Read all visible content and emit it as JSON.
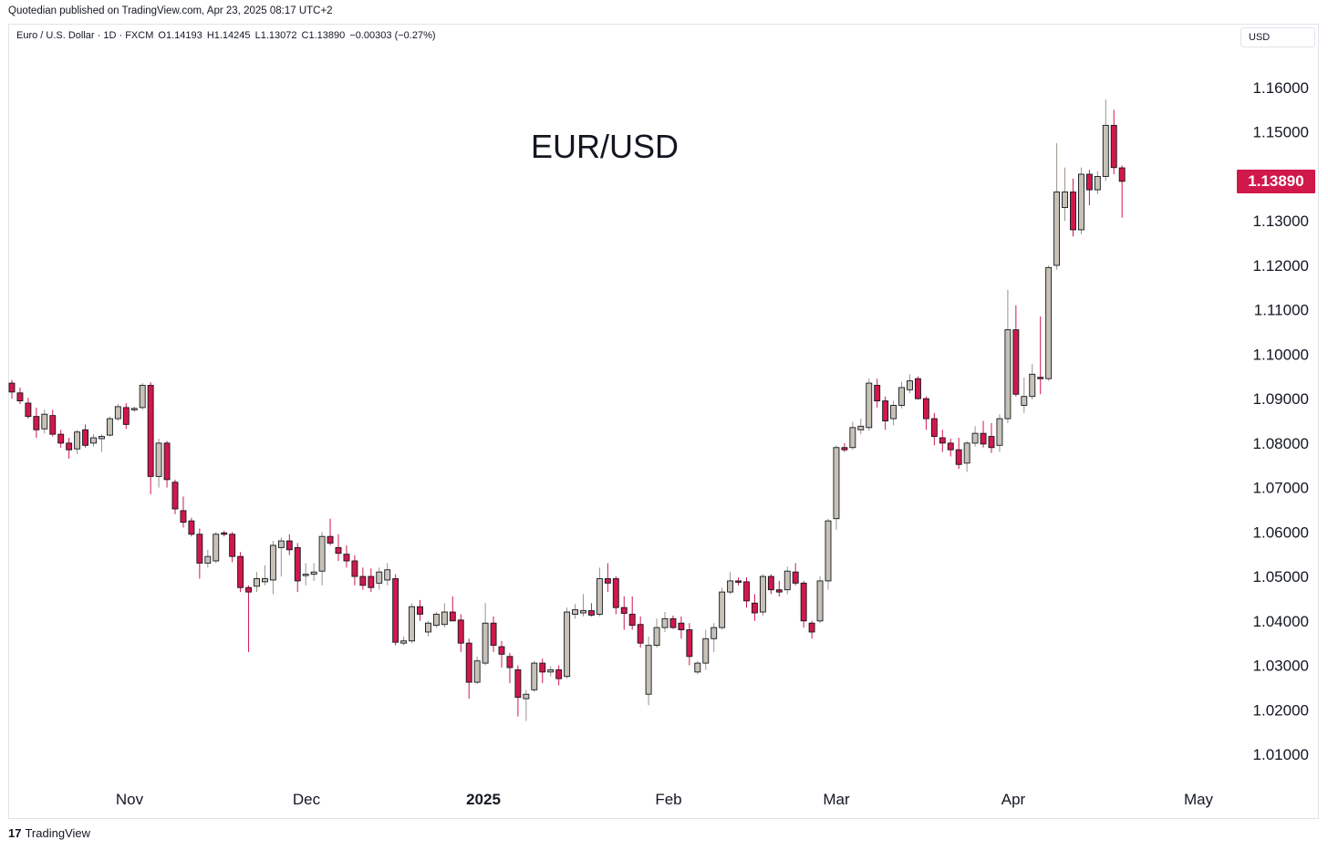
{
  "header": {
    "published": "Quotedian published on TradingView.com, Apr 23, 2025 08:17 UTC+2"
  },
  "legend": {
    "symbol": "Euro / U.S. Dollar · 1D · FXCM",
    "open": "O1.14193",
    "high": "H1.14245",
    "low": "L1.13072",
    "close": "C1.13890",
    "change": "−0.00303 (−0.27%)"
  },
  "currency_selector": "USD",
  "footer": {
    "brand": "TradingView",
    "logo_glyph": "17"
  },
  "colors": {
    "up": "#c8c2b6",
    "up_border": "#131722",
    "down": "#d1184b",
    "down_border": "#131722",
    "price_badge": "#d1184b"
  },
  "chart_data": {
    "type": "candlestick",
    "title": "EUR/USD",
    "current_price": "1.13890",
    "y_ticks": [
      "1.16000",
      "1.15000",
      "1.13000",
      "1.12000",
      "1.11000",
      "1.10000",
      "1.09000",
      "1.08000",
      "1.07000",
      "1.06000",
      "1.05000",
      "1.04000",
      "1.03000",
      "1.02000",
      "1.01000"
    ],
    "x_ticks": [
      "Nov",
      "Dec",
      "2025",
      "Feb",
      "Mar",
      "Apr",
      "May"
    ],
    "ylim": [
      1.003,
      1.17
    ],
    "candles": [
      {
        "o": 1.0935,
        "h": 1.0942,
        "l": 1.09,
        "c": 1.0915
      },
      {
        "o": 1.0913,
        "h": 1.0925,
        "l": 1.0888,
        "c": 1.0895
      },
      {
        "o": 1.089,
        "h": 1.0902,
        "l": 1.0855,
        "c": 1.086
      },
      {
        "o": 1.086,
        "h": 1.088,
        "l": 1.0812,
        "c": 1.083
      },
      {
        "o": 1.0832,
        "h": 1.0875,
        "l": 1.0822,
        "c": 1.0865
      },
      {
        "o": 1.0862,
        "h": 1.0875,
        "l": 1.0815,
        "c": 1.082
      },
      {
        "o": 1.082,
        "h": 1.083,
        "l": 1.079,
        "c": 1.08
      },
      {
        "o": 1.08,
        "h": 1.0812,
        "l": 1.0765,
        "c": 1.0785
      },
      {
        "o": 1.0787,
        "h": 1.083,
        "l": 1.0775,
        "c": 1.0825
      },
      {
        "o": 1.083,
        "h": 1.0842,
        "l": 1.079,
        "c": 1.0795
      },
      {
        "o": 1.08,
        "h": 1.082,
        "l": 1.0792,
        "c": 1.0812
      },
      {
        "o": 1.081,
        "h": 1.082,
        "l": 1.078,
        "c": 1.0815
      },
      {
        "o": 1.0818,
        "h": 1.086,
        "l": 1.0815,
        "c": 1.0855
      },
      {
        "o": 1.0855,
        "h": 1.0888,
        "l": 1.085,
        "c": 1.0882
      },
      {
        "o": 1.088,
        "h": 1.089,
        "l": 1.0832,
        "c": 1.0842
      },
      {
        "o": 1.0875,
        "h": 1.0882,
        "l": 1.087,
        "c": 1.0878
      },
      {
        "o": 1.088,
        "h": 1.0935,
        "l": 1.0875,
        "c": 1.093
      },
      {
        "o": 1.093,
        "h": 1.0937,
        "l": 1.0685,
        "c": 1.0725
      },
      {
        "o": 1.0725,
        "h": 1.081,
        "l": 1.07,
        "c": 1.08
      },
      {
        "o": 1.08,
        "h": 1.0805,
        "l": 1.07,
        "c": 1.0718
      },
      {
        "o": 1.0712,
        "h": 1.0718,
        "l": 1.064,
        "c": 1.0652
      },
      {
        "o": 1.0648,
        "h": 1.068,
        "l": 1.061,
        "c": 1.0622
      },
      {
        "o": 1.0625,
        "h": 1.0632,
        "l": 1.059,
        "c": 1.0595
      },
      {
        "o": 1.0595,
        "h": 1.0608,
        "l": 1.0495,
        "c": 1.053
      },
      {
        "o": 1.053,
        "h": 1.056,
        "l": 1.052,
        "c": 1.0545
      },
      {
        "o": 1.0535,
        "h": 1.06,
        "l": 1.053,
        "c": 1.0595
      },
      {
        "o": 1.0598,
        "h": 1.0603,
        "l": 1.059,
        "c": 1.0595
      },
      {
        "o": 1.0595,
        "h": 1.06,
        "l": 1.0532,
        "c": 1.0545
      },
      {
        "o": 1.0545,
        "h": 1.0555,
        "l": 1.0465,
        "c": 1.0475
      },
      {
        "o": 1.0475,
        "h": 1.048,
        "l": 1.033,
        "c": 1.0465
      },
      {
        "o": 1.0478,
        "h": 1.051,
        "l": 1.0465,
        "c": 1.0495
      },
      {
        "o": 1.0488,
        "h": 1.0525,
        "l": 1.048,
        "c": 1.0495
      },
      {
        "o": 1.0492,
        "h": 1.058,
        "l": 1.046,
        "c": 1.057
      },
      {
        "o": 1.0565,
        "h": 1.0588,
        "l": 1.05,
        "c": 1.058
      },
      {
        "o": 1.058,
        "h": 1.0595,
        "l": 1.0548,
        "c": 1.056
      },
      {
        "o": 1.0565,
        "h": 1.0575,
        "l": 1.0465,
        "c": 1.049
      },
      {
        "o": 1.0505,
        "h": 1.053,
        "l": 1.048,
        "c": 1.0505
      },
      {
        "o": 1.0505,
        "h": 1.053,
        "l": 1.049,
        "c": 1.051
      },
      {
        "o": 1.0512,
        "h": 1.06,
        "l": 1.048,
        "c": 1.059
      },
      {
        "o": 1.059,
        "h": 1.063,
        "l": 1.057,
        "c": 1.0575
      },
      {
        "o": 1.0565,
        "h": 1.0595,
        "l": 1.0535,
        "c": 1.0552
      },
      {
        "o": 1.055,
        "h": 1.057,
        "l": 1.052,
        "c": 1.0535
      },
      {
        "o": 1.0535,
        "h": 1.0548,
        "l": 1.048,
        "c": 1.05
      },
      {
        "o": 1.05,
        "h": 1.052,
        "l": 1.047,
        "c": 1.048
      },
      {
        "o": 1.05,
        "h": 1.0518,
        "l": 1.0465,
        "c": 1.0475
      },
      {
        "o": 1.0485,
        "h": 1.052,
        "l": 1.047,
        "c": 1.051
      },
      {
        "o": 1.0492,
        "h": 1.053,
        "l": 1.048,
        "c": 1.0515
      },
      {
        "o": 1.0495,
        "h": 1.0505,
        "l": 1.0345,
        "c": 1.0352
      },
      {
        "o": 1.035,
        "h": 1.0365,
        "l": 1.0345,
        "c": 1.0355
      },
      {
        "o": 1.0355,
        "h": 1.044,
        "l": 1.035,
        "c": 1.0432
      },
      {
        "o": 1.0432,
        "h": 1.0447,
        "l": 1.04,
        "c": 1.0415
      },
      {
        "o": 1.0375,
        "h": 1.04,
        "l": 1.0365,
        "c": 1.0395
      },
      {
        "o": 1.039,
        "h": 1.042,
        "l": 1.0385,
        "c": 1.0415
      },
      {
        "o": 1.0392,
        "h": 1.044,
        "l": 1.0385,
        "c": 1.042
      },
      {
        "o": 1.042,
        "h": 1.0455,
        "l": 1.04,
        "c": 1.04
      },
      {
        "o": 1.0402,
        "h": 1.0415,
        "l": 1.033,
        "c": 1.035
      },
      {
        "o": 1.035,
        "h": 1.036,
        "l": 1.0225,
        "c": 1.0262
      },
      {
        "o": 1.0262,
        "h": 1.032,
        "l": 1.0258,
        "c": 1.031
      },
      {
        "o": 1.0305,
        "h": 1.044,
        "l": 1.03,
        "c": 1.0395
      },
      {
        "o": 1.0395,
        "h": 1.041,
        "l": 1.033,
        "c": 1.0345
      },
      {
        "o": 1.0342,
        "h": 1.0355,
        "l": 1.0295,
        "c": 1.0325
      },
      {
        "o": 1.032,
        "h": 1.0328,
        "l": 1.026,
        "c": 1.0295
      },
      {
        "o": 1.029,
        "h": 1.03,
        "l": 1.0185,
        "c": 1.0228
      },
      {
        "o": 1.0225,
        "h": 1.0245,
        "l": 1.0175,
        "c": 1.0235
      },
      {
        "o": 1.0245,
        "h": 1.031,
        "l": 1.024,
        "c": 1.0305
      },
      {
        "o": 1.0305,
        "h": 1.0315,
        "l": 1.026,
        "c": 1.0285
      },
      {
        "o": 1.0285,
        "h": 1.0298,
        "l": 1.0275,
        "c": 1.029
      },
      {
        "o": 1.029,
        "h": 1.03,
        "l": 1.0255,
        "c": 1.027
      },
      {
        "o": 1.0275,
        "h": 1.043,
        "l": 1.027,
        "c": 1.042
      },
      {
        "o": 1.0415,
        "h": 1.0438,
        "l": 1.0405,
        "c": 1.0425
      },
      {
        "o": 1.0418,
        "h": 1.046,
        "l": 1.041,
        "c": 1.0423
      },
      {
        "o": 1.0423,
        "h": 1.044,
        "l": 1.041,
        "c": 1.0413
      },
      {
        "o": 1.0415,
        "h": 1.052,
        "l": 1.041,
        "c": 1.0495
      },
      {
        "o": 1.0495,
        "h": 1.053,
        "l": 1.0465,
        "c": 1.0485
      },
      {
        "o": 1.0495,
        "h": 1.05,
        "l": 1.0415,
        "c": 1.043
      },
      {
        "o": 1.043,
        "h": 1.0455,
        "l": 1.038,
        "c": 1.0417
      },
      {
        "o": 1.0415,
        "h": 1.0455,
        "l": 1.038,
        "c": 1.039
      },
      {
        "o": 1.0392,
        "h": 1.041,
        "l": 1.034,
        "c": 1.035
      },
      {
        "o": 1.0235,
        "h": 1.0365,
        "l": 1.021,
        "c": 1.0345
      },
      {
        "o": 1.0345,
        "h": 1.0405,
        "l": 1.034,
        "c": 1.0385
      },
      {
        "o": 1.0385,
        "h": 1.042,
        "l": 1.0375,
        "c": 1.0405
      },
      {
        "o": 1.0405,
        "h": 1.0412,
        "l": 1.0382,
        "c": 1.0385
      },
      {
        "o": 1.0395,
        "h": 1.041,
        "l": 1.036,
        "c": 1.038
      },
      {
        "o": 1.038,
        "h": 1.0395,
        "l": 1.03,
        "c": 1.032
      },
      {
        "o": 1.0285,
        "h": 1.031,
        "l": 1.028,
        "c": 1.0305
      },
      {
        "o": 1.0305,
        "h": 1.038,
        "l": 1.029,
        "c": 1.036
      },
      {
        "o": 1.036,
        "h": 1.0395,
        "l": 1.033,
        "c": 1.0385
      },
      {
        "o": 1.0385,
        "h": 1.0475,
        "l": 1.038,
        "c": 1.0465
      },
      {
        "o": 1.0465,
        "h": 1.051,
        "l": 1.046,
        "c": 1.049
      },
      {
        "o": 1.049,
        "h": 1.0498,
        "l": 1.048,
        "c": 1.0488
      },
      {
        "o": 1.0488,
        "h": 1.0498,
        "l": 1.043,
        "c": 1.0445
      },
      {
        "o": 1.044,
        "h": 1.046,
        "l": 1.04,
        "c": 1.0418
      },
      {
        "o": 1.042,
        "h": 1.0505,
        "l": 1.0412,
        "c": 1.05
      },
      {
        "o": 1.05,
        "h": 1.0505,
        "l": 1.046,
        "c": 1.047
      },
      {
        "o": 1.047,
        "h": 1.049,
        "l": 1.0455,
        "c": 1.0465
      },
      {
        "o": 1.047,
        "h": 1.0522,
        "l": 1.046,
        "c": 1.0512
      },
      {
        "o": 1.051,
        "h": 1.053,
        "l": 1.048,
        "c": 1.0485
      },
      {
        "o": 1.0485,
        "h": 1.049,
        "l": 1.0385,
        "c": 1.04
      },
      {
        "o": 1.0395,
        "h": 1.04,
        "l": 1.036,
        "c": 1.0375
      },
      {
        "o": 1.04,
        "h": 1.05,
        "l": 1.0395,
        "c": 1.049
      },
      {
        "o": 1.049,
        "h": 1.063,
        "l": 1.047,
        "c": 1.0625
      },
      {
        "o": 1.063,
        "h": 1.0795,
        "l": 1.0605,
        "c": 1.079
      },
      {
        "o": 1.079,
        "h": 1.08,
        "l": 1.078,
        "c": 1.0785
      },
      {
        "o": 1.079,
        "h": 1.0848,
        "l": 1.0785,
        "c": 1.0835
      },
      {
        "o": 1.083,
        "h": 1.0855,
        "l": 1.082,
        "c": 1.0838
      },
      {
        "o": 1.0835,
        "h": 1.0945,
        "l": 1.0828,
        "c": 1.0935
      },
      {
        "o": 1.093,
        "h": 1.0945,
        "l": 1.088,
        "c": 1.0895
      },
      {
        "o": 1.0895,
        "h": 1.0905,
        "l": 1.083,
        "c": 1.085
      },
      {
        "o": 1.0855,
        "h": 1.0895,
        "l": 1.084,
        "c": 1.0885
      },
      {
        "o": 1.0885,
        "h": 1.0938,
        "l": 1.0878,
        "c": 1.0925
      },
      {
        "o": 1.092,
        "h": 1.0955,
        "l": 1.0912,
        "c": 1.094
      },
      {
        "o": 1.0945,
        "h": 1.095,
        "l": 1.0898,
        "c": 1.09
      },
      {
        "o": 1.09,
        "h": 1.0905,
        "l": 1.083,
        "c": 1.0855
      },
      {
        "o": 1.0855,
        "h": 1.0868,
        "l": 1.0795,
        "c": 1.0815
      },
      {
        "o": 1.0812,
        "h": 1.083,
        "l": 1.078,
        "c": 1.08
      },
      {
        "o": 1.08,
        "h": 1.081,
        "l": 1.077,
        "c": 1.0785
      },
      {
        "o": 1.0785,
        "h": 1.0812,
        "l": 1.0742,
        "c": 1.0752
      },
      {
        "o": 1.0755,
        "h": 1.0805,
        "l": 1.0735,
        "c": 1.08
      },
      {
        "o": 1.08,
        "h": 1.0838,
        "l": 1.0792,
        "c": 1.0822
      },
      {
        "o": 1.0822,
        "h": 1.085,
        "l": 1.079,
        "c": 1.0798
      },
      {
        "o": 1.0815,
        "h": 1.0845,
        "l": 1.0778,
        "c": 1.079
      },
      {
        "o": 1.0795,
        "h": 1.0865,
        "l": 1.078,
        "c": 1.0855
      },
      {
        "o": 1.0855,
        "h": 1.1145,
        "l": 1.0845,
        "c": 1.1055
      },
      {
        "o": 1.1055,
        "h": 1.111,
        "l": 1.0905,
        "c": 1.091
      },
      {
        "o": 1.0885,
        "h": 1.0948,
        "l": 1.0868,
        "c": 1.0905
      },
      {
        "o": 1.0905,
        "h": 1.0978,
        "l": 1.0898,
        "c": 1.0955
      },
      {
        "o": 1.0948,
        "h": 1.1085,
        "l": 1.091,
        "c": 1.0945
      },
      {
        "o": 1.0945,
        "h": 1.12,
        "l": 1.094,
        "c": 1.1195
      },
      {
        "o": 1.12,
        "h": 1.1475,
        "l": 1.119,
        "c": 1.1365
      },
      {
        "o": 1.133,
        "h": 1.142,
        "l": 1.13,
        "c": 1.1365
      },
      {
        "o": 1.1365,
        "h": 1.1395,
        "l": 1.1265,
        "c": 1.128
      },
      {
        "o": 1.128,
        "h": 1.142,
        "l": 1.127,
        "c": 1.1405
      },
      {
        "o": 1.1405,
        "h": 1.1415,
        "l": 1.1335,
        "c": 1.137
      },
      {
        "o": 1.137,
        "h": 1.1412,
        "l": 1.136,
        "c": 1.14
      },
      {
        "o": 1.14,
        "h": 1.1573,
        "l": 1.139,
        "c": 1.1515
      },
      {
        "o": 1.1515,
        "h": 1.155,
        "l": 1.1405,
        "c": 1.142
      },
      {
        "o": 1.14193,
        "h": 1.14245,
        "l": 1.13072,
        "c": 1.1389
      }
    ]
  }
}
